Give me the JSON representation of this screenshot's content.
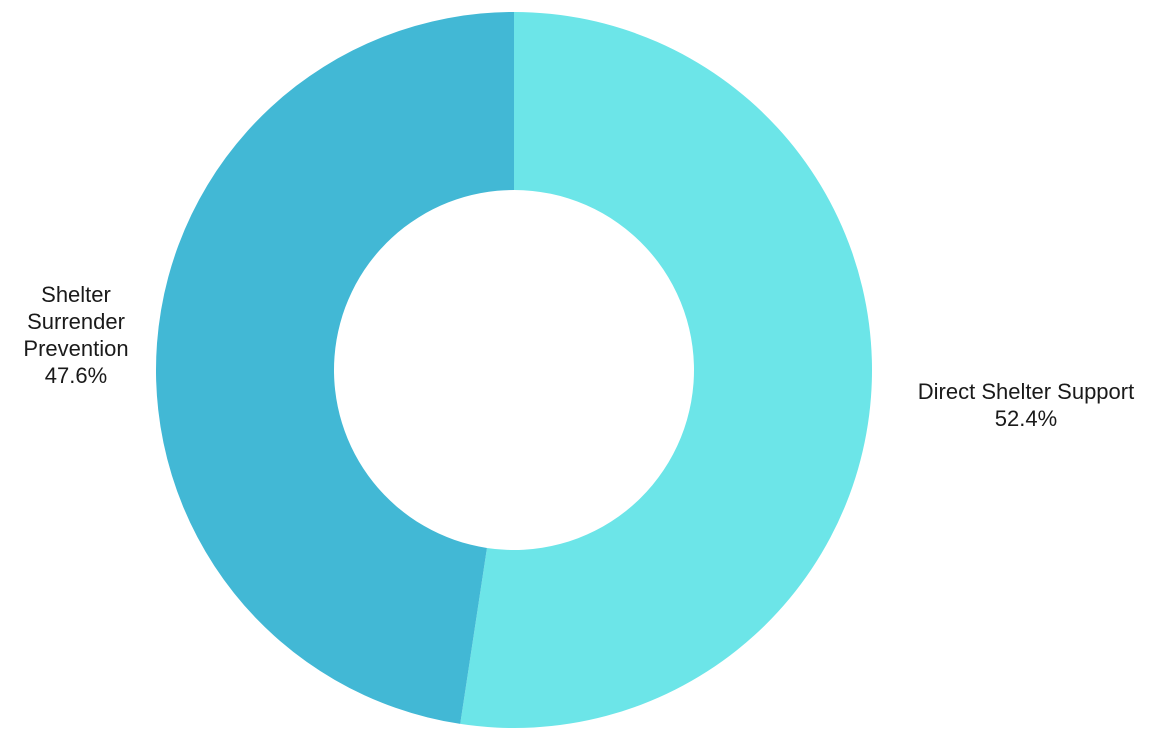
{
  "chart_data": {
    "type": "pie",
    "variant": "donut",
    "title": "",
    "start_angle_deg": 0,
    "direction": "clockwise",
    "slices": [
      {
        "label": "Direct Shelter Support",
        "value": 52.4,
        "value_label": "52.4%",
        "color": "#6CE5E8"
      },
      {
        "label": "Shelter Surrender Prevention",
        "label_lines": [
          "Shelter",
          "Surrender",
          "Prevention"
        ],
        "value": 47.6,
        "value_label": "47.6%",
        "color": "#42B8D5"
      }
    ],
    "legend": "none"
  }
}
